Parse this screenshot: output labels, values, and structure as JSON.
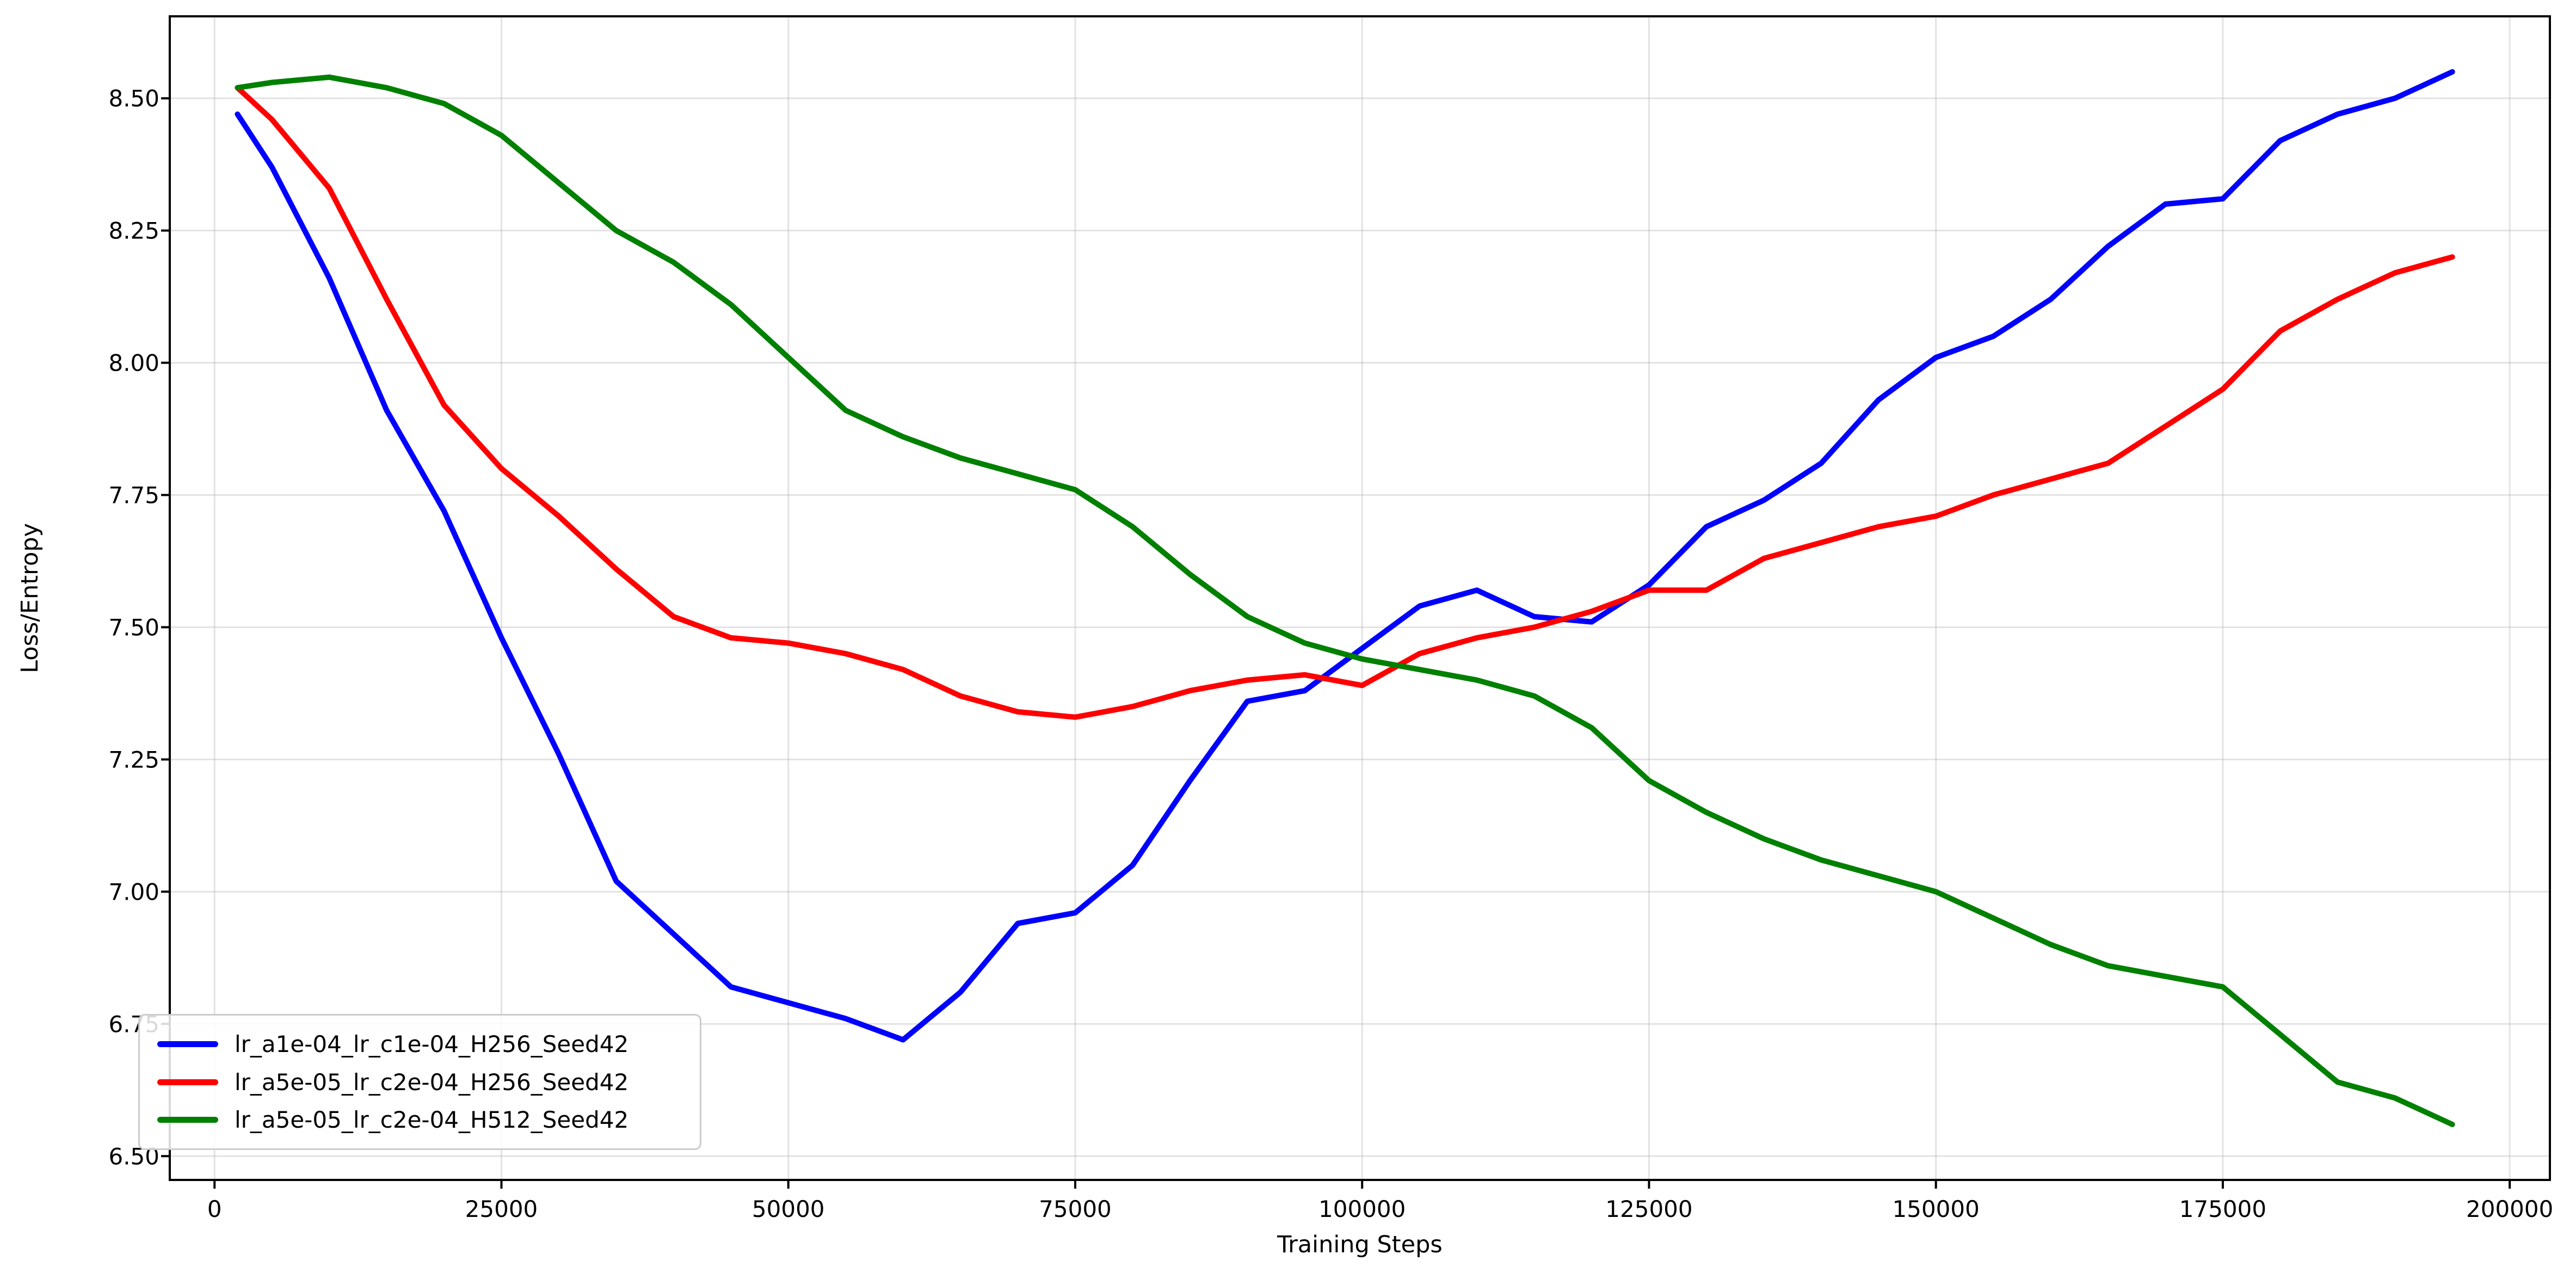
{
  "chart_data": {
    "type": "line",
    "title": "",
    "xlabel": "Training Steps",
    "ylabel": "Loss/Entropy",
    "grid": true,
    "legend_position": "lower left",
    "xlim": [
      -3900,
      203500
    ],
    "ylim": [
      6.455,
      8.655
    ],
    "x_ticks": [
      0,
      25000,
      50000,
      75000,
      100000,
      125000,
      150000,
      175000,
      200000
    ],
    "x_tick_labels": [
      "0",
      "25000",
      "50000",
      "75000",
      "100000",
      "125000",
      "150000",
      "175000",
      "200000"
    ],
    "y_ticks": [
      6.5,
      6.75,
      7.0,
      7.25,
      7.5,
      7.75,
      8.0,
      8.25,
      8.5
    ],
    "y_tick_labels": [
      "6.50",
      "6.75",
      "7.00",
      "7.25",
      "7.50",
      "7.75",
      "8.00",
      "8.25",
      "8.50"
    ],
    "steps": [
      2000,
      5000,
      10000,
      15000,
      20000,
      25000,
      30000,
      35000,
      40000,
      45000,
      50000,
      55000,
      60000,
      65000,
      70000,
      75000,
      80000,
      85000,
      90000,
      95000,
      100000,
      105000,
      110000,
      115000,
      120000,
      125000,
      130000,
      135000,
      140000,
      145000,
      150000,
      155000,
      160000,
      165000,
      170000,
      175000,
      180000,
      185000,
      190000,
      195000
    ],
    "series": [
      {
        "name": "lr_a1e-04_lr_c1e-04_H256_Seed42",
        "color": "#0000ff",
        "values": [
          8.47,
          8.37,
          8.16,
          7.91,
          7.72,
          7.48,
          7.26,
          7.02,
          6.92,
          6.82,
          6.79,
          6.76,
          6.72,
          6.81,
          6.94,
          6.96,
          7.05,
          7.21,
          7.36,
          7.38,
          7.46,
          7.54,
          7.57,
          7.52,
          7.51,
          7.58,
          7.69,
          7.74,
          7.81,
          7.93,
          8.01,
          8.05,
          8.12,
          8.22,
          8.3,
          8.31,
          8.42,
          8.47,
          8.5,
          8.55
        ]
      },
      {
        "name": "lr_a5e-05_lr_c2e-04_H256_Seed42",
        "color": "#ff0000",
        "values": [
          8.52,
          8.46,
          8.33,
          8.12,
          7.92,
          7.8,
          7.71,
          7.61,
          7.52,
          7.48,
          7.47,
          7.45,
          7.42,
          7.37,
          7.34,
          7.33,
          7.35,
          7.38,
          7.4,
          7.41,
          7.39,
          7.45,
          7.48,
          7.5,
          7.53,
          7.57,
          7.57,
          7.63,
          7.66,
          7.69,
          7.71,
          7.75,
          7.78,
          7.81,
          7.88,
          7.95,
          8.06,
          8.12,
          8.17,
          8.2
        ]
      },
      {
        "name": "lr_a5e-05_lr_c2e-04_H512_Seed42",
        "color": "#008000",
        "values": [
          8.52,
          8.53,
          8.54,
          8.52,
          8.49,
          8.43,
          8.34,
          8.25,
          8.19,
          8.11,
          8.01,
          7.91,
          7.86,
          7.82,
          7.79,
          7.76,
          7.69,
          7.6,
          7.52,
          7.47,
          7.44,
          7.42,
          7.4,
          7.37,
          7.31,
          7.21,
          7.15,
          7.1,
          7.06,
          7.03,
          7.0,
          6.95,
          6.9,
          6.86,
          6.84,
          6.82,
          6.73,
          6.64,
          6.61,
          6.56
        ]
      }
    ]
  }
}
